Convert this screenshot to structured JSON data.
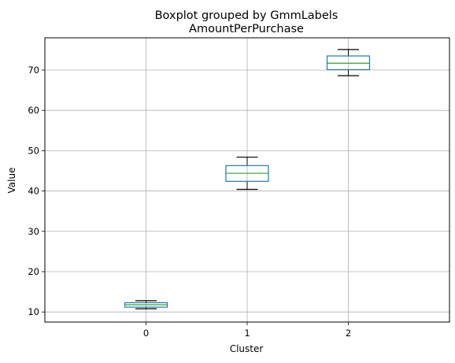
{
  "chart_data": {
    "type": "box",
    "suptitle": "Boxplot grouped by GmmLabels",
    "title": "AmountPerPurchase",
    "xlabel": "Cluster",
    "ylabel": "Value",
    "categories": [
      "0",
      "1",
      "2"
    ],
    "ylim": [
      7.5,
      78
    ],
    "yticks": [
      10,
      20,
      30,
      40,
      50,
      60,
      70
    ],
    "grid": true,
    "boxes": [
      {
        "category": "0",
        "whisker_low": 10.8,
        "q1": 11.2,
        "median": 11.8,
        "q3": 12.3,
        "whisker_high": 12.8
      },
      {
        "category": "1",
        "whisker_low": 40.4,
        "q1": 42.4,
        "median": 44.4,
        "q3": 46.3,
        "whisker_high": 48.4
      },
      {
        "category": "2",
        "whisker_low": 68.6,
        "q1": 70.1,
        "median": 71.7,
        "q3": 73.5,
        "whisker_high": 75.1
      }
    ],
    "colors": {
      "box": "#1f77b4",
      "median": "#2ca02c",
      "whisker": "#000000",
      "grid": "#b0b0b0",
      "axes": "#000000"
    }
  }
}
